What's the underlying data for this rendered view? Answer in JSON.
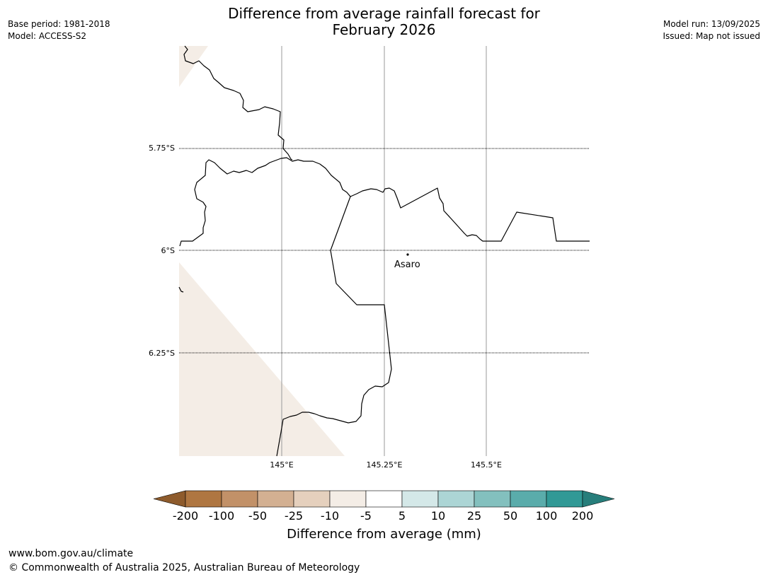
{
  "title": {
    "line1": "Difference from average rainfall forecast for",
    "line2": "February 2026"
  },
  "meta": {
    "base_period": "Base period: 1981-2018",
    "model": "Model: ACCESS-S2",
    "model_run": "Model run: 13/09/2025",
    "issued": "Issued: Map not issued"
  },
  "map": {
    "lat_labels": [
      "5.75°S",
      "6°S",
      "6.25°S"
    ],
    "lon_labels": [
      "145°E",
      "145.25°E",
      "145.5°E"
    ],
    "place": "Asaro",
    "land_fill_color": "#f4ede6",
    "regions": [
      {
        "category": "-10 to -5",
        "color": "#f4ede6"
      }
    ]
  },
  "colorbar": {
    "labels": [
      "-200",
      "-100",
      "-50",
      "-25",
      "-10",
      "-5",
      "5",
      "10",
      "25",
      "50",
      "100",
      "200"
    ],
    "colors": [
      "#8e5b2c",
      "#af7641",
      "#c29168",
      "#d3b092",
      "#e5d0bd",
      "#f4ede6",
      "#ffffff",
      "#d4e8e8",
      "#acd5d5",
      "#83c0be",
      "#5aacab",
      "#319996",
      "#277e7b"
    ],
    "title": "Difference from average (mm)"
  },
  "footer": {
    "url": "www.bom.gov.au/climate",
    "copyright": "© Commonwealth of Australia 2025, Australian Bureau of Meteorology"
  }
}
